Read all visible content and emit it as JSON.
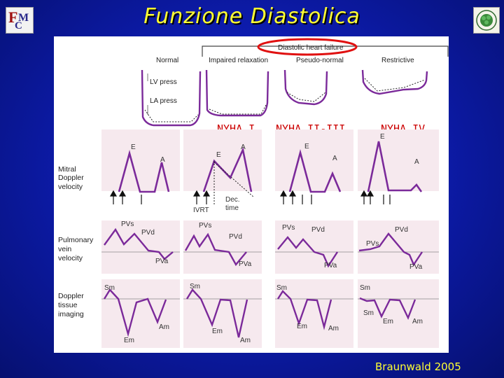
{
  "title": "Funzione Diastolica",
  "credit": "Braunwald 2005",
  "header": {
    "group_label": "Diastolic heart failure",
    "columns": [
      "Normal",
      "Impaired relaxation",
      "Pseudo-normal",
      "Restrictive"
    ]
  },
  "pressure_labels": {
    "lv": "LV press",
    "la": "LA press"
  },
  "nyha": [
    "NYHA I",
    "NYHA II-III",
    "NYHA IV"
  ],
  "rows": [
    {
      "label_lines": [
        "Mitral",
        "Doppler",
        "velocity"
      ]
    },
    {
      "label_lines": [
        "Pulmonary",
        "vein",
        "velocity"
      ]
    },
    {
      "label_lines": [
        "Doppler",
        "tissue",
        "imaging"
      ]
    }
  ],
  "wave_labels": {
    "e": "E",
    "a": "A",
    "ivrt": "IVRT",
    "dec_1": "Dec.",
    "dec_2": "time",
    "pvs": "PVs",
    "pvd": "PVd",
    "pva": "PVa",
    "sm": "Sm",
    "em": "Em",
    "am": "Am"
  },
  "colors": {
    "background": "#0d1cb0",
    "title": "#ffff33",
    "panel_bg": "#f6e9ee",
    "waveform": "#7b2a9a",
    "highlight": "#cc0000"
  }
}
